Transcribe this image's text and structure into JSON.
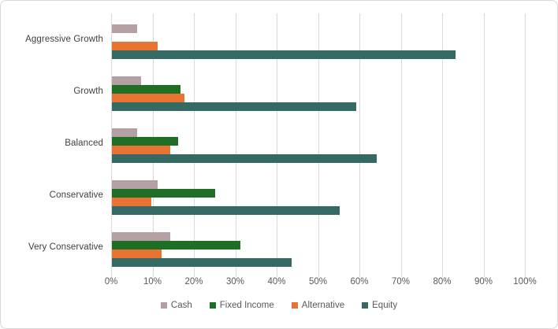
{
  "chart_data": {
    "type": "bar",
    "orientation": "horizontal",
    "title": "",
    "categories": [
      "Aggressive Growth",
      "Growth",
      "Balanced",
      "Conservative",
      "Very Conservative"
    ],
    "series": [
      {
        "name": "Cash",
        "color": "#b5a1a3",
        "values": [
          6,
          7,
          6,
          11,
          14
        ]
      },
      {
        "name": "Fixed Income",
        "color": "#1e6e26",
        "values": [
          0,
          16.5,
          16,
          25,
          31
        ]
      },
      {
        "name": "Alternative",
        "color": "#e97333",
        "values": [
          11,
          17.5,
          14,
          9.5,
          12
        ]
      },
      {
        "name": "Equity",
        "color": "#356963",
        "values": [
          83,
          59,
          64,
          55,
          43.5
        ]
      }
    ],
    "x_axis": {
      "min": 0,
      "max": 100,
      "tick_labels": [
        "0%",
        "10%",
        "20%",
        "30%",
        "40%",
        "50%",
        "60%",
        "70%",
        "80%",
        "90%",
        "100%"
      ],
      "tick_values": [
        0,
        10,
        20,
        30,
        40,
        50,
        60,
        70,
        80,
        90,
        100
      ]
    },
    "grid": true,
    "legend_position": "bottom",
    "legend": [
      "Cash",
      "Fixed Income",
      "Alternative",
      "Equity"
    ],
    "colors": {
      "gridline": "#d9d9d9",
      "category_label_text": "#404040",
      "axis_label_text": "#595959",
      "legend_text": "#595959",
      "background": "#ffffff",
      "border": "#d8d8d8"
    }
  }
}
